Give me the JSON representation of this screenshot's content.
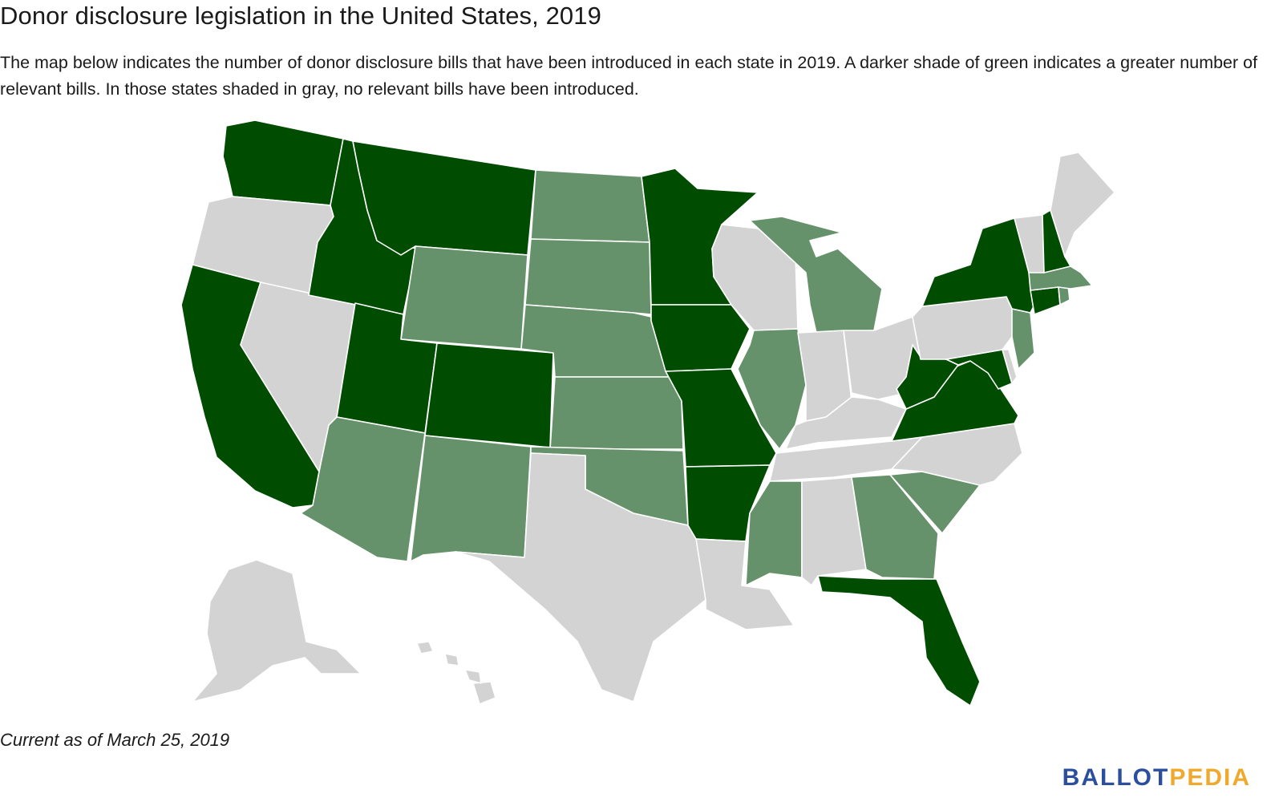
{
  "title": "Donor disclosure legislation in the United States, 2019",
  "subtitle": "The map below indicates the number of donor disclosure bills that have been introduced in each state in 2019. A darker shade of green indicates a greater number of relevant bills. In those states shaded in gray, no relevant bills have been introduced.",
  "footnote": "Current as of March 25, 2019",
  "logo": {
    "part1": "BALLOT",
    "part2": "PEDIA",
    "color1": "#2b4f9e",
    "color2": "#f0a92c"
  },
  "colors": {
    "dark": "#004c00",
    "light": "#66926b",
    "none": "#d3d3d3"
  },
  "states": {
    "WA": "dark",
    "OR": "none",
    "CA": "dark",
    "ID": "dark",
    "NV": "none",
    "MT": "dark",
    "WY": "light",
    "UT": "dark",
    "AZ": "light",
    "CO": "dark",
    "NM": "light",
    "ND": "light",
    "SD": "light",
    "NE": "light",
    "KS": "light",
    "OK": "light",
    "TX": "none",
    "MN": "dark",
    "IA": "dark",
    "MO": "dark",
    "AR": "dark",
    "LA": "none",
    "WI": "none",
    "IL": "light",
    "MI": "light",
    "IN": "none",
    "OH": "none",
    "KY": "none",
    "TN": "none",
    "MS": "light",
    "AL": "none",
    "GA": "light",
    "FL": "dark",
    "SC": "light",
    "NC": "none",
    "VA": "dark",
    "WV": "dark",
    "MD": "dark",
    "DE": "none",
    "PA": "none",
    "NJ": "light",
    "NY": "dark",
    "CT": "dark",
    "RI": "light",
    "MA": "light",
    "VT": "none",
    "NH": "dark",
    "ME": "none",
    "AK": "none",
    "HI": "none"
  }
}
